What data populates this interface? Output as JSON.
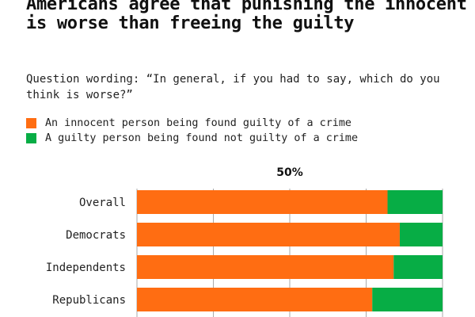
{
  "title": "Americans agree that punishing the innocent is worse than freeing the guilty",
  "subtitle": "Question wording: “In general, if you had to say, which do you think is worse?”",
  "colors": {
    "innocent": "#ff6d12",
    "guilty": "#07ad45",
    "grid": "#aaaaaa"
  },
  "legend": [
    {
      "label": "An innocent person being found guilty of a crime",
      "color": "#ff6d12"
    },
    {
      "label": "A guilty person being found not guilty of a crime",
      "color": "#07ad45"
    }
  ],
  "chart_data": {
    "type": "bar",
    "orientation": "horizontal",
    "stacked": true,
    "categories": [
      "Overall",
      "Democrats",
      "Independents",
      "Republicans"
    ],
    "series": [
      {
        "name": "An innocent person being found guilty of a crime",
        "values": [
          82,
          86,
          84,
          77
        ]
      },
      {
        "name": "A guilty person being found not guilty of a crime",
        "values": [
          18,
          14,
          16,
          23
        ]
      }
    ],
    "xlim": [
      0,
      100
    ],
    "annotation": "50%",
    "legend_position": "top-left",
    "grid": true
  }
}
